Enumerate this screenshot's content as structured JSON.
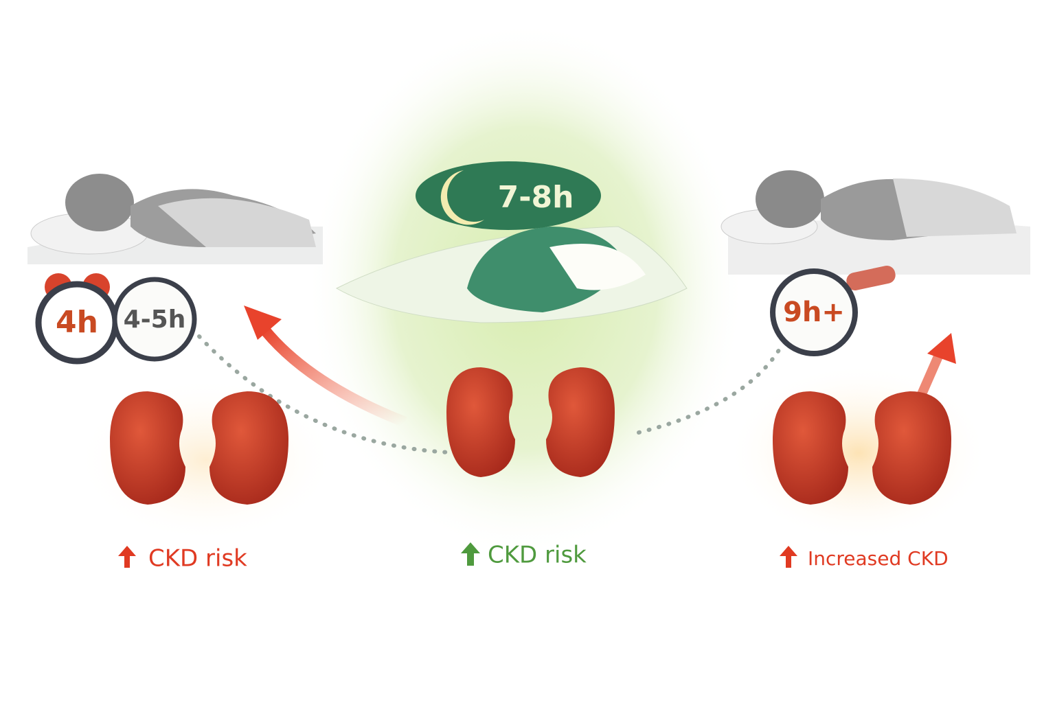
{
  "panels": [
    {
      "clocks": [
        "4h",
        "4-5h"
      ],
      "label": "CKD risk"
    },
    {
      "clocks": [
        "7-8h"
      ],
      "label": "CKD risk"
    },
    {
      "clocks": [
        "9h+"
      ],
      "label": "Increased CKD"
    }
  ]
}
